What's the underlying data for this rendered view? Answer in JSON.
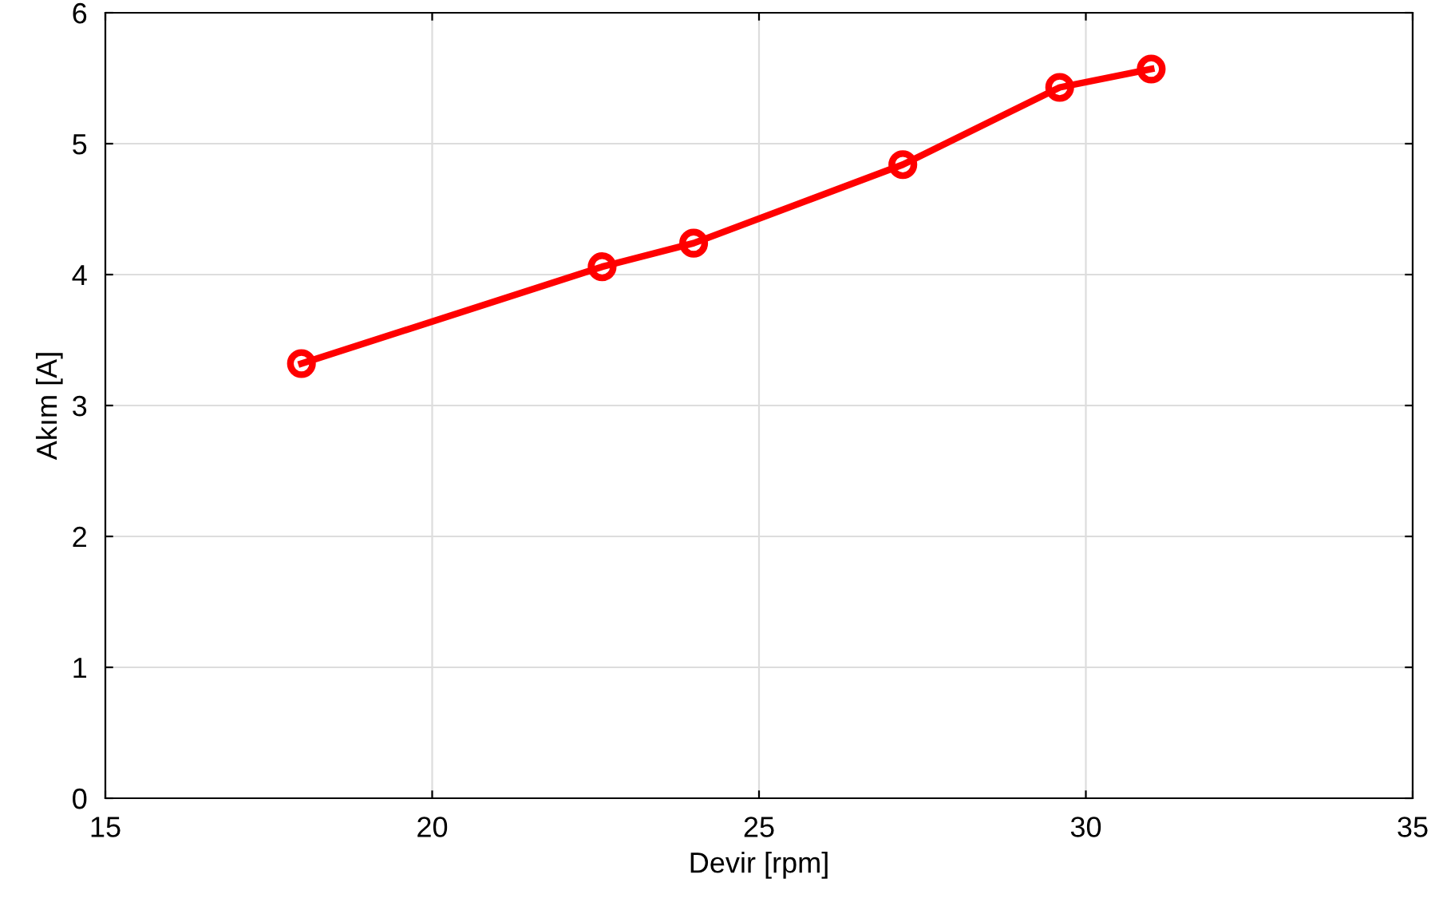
{
  "chart_data": {
    "type": "line",
    "xlabel": "Devir [rpm]",
    "ylabel": "Akım [A]",
    "x": [
      18,
      22.6,
      24,
      27.2,
      29.6,
      31
    ],
    "series": [
      {
        "color": "#ff0000",
        "values": [
          3.32,
          4.06,
          4.24,
          4.84,
          5.43,
          5.57
        ]
      }
    ],
    "xlim": [
      15,
      35
    ],
    "xticks": [
      15,
      20,
      25,
      30,
      35
    ],
    "ylim": [
      0,
      6
    ],
    "yticks": [
      0,
      1,
      2,
      3,
      4,
      5,
      6
    ],
    "grid": true,
    "marker": "circle",
    "line_style": "solid"
  }
}
